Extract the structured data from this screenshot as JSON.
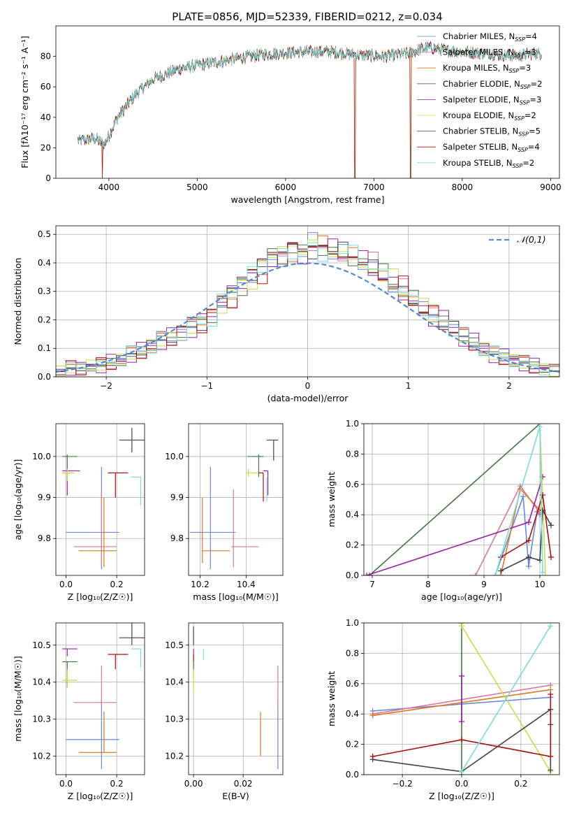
{
  "figure_title": "PLATE=0856, MJD=52339, FIBERID=0212, z=0.034",
  "colors": {
    "Chabrier MILES": "#6688dd",
    "Salpeter MILES": "#dd7799",
    "Kroupa MILES": "#dd7722",
    "Chabrier ELODIE": "#447744",
    "Salpeter ELODIE": "#9922aa",
    "Kroupa ELODIE": "#ccdd44",
    "Chabrier STELIB": "#444444",
    "Salpeter STELIB": "#aa1111",
    "Kroupa STELIB": "#77dddd"
  },
  "chart_data": [
    {
      "id": "spectrum",
      "type": "line",
      "xlabel": "wavelength [Angstrom, rest frame]",
      "ylabel": "Flux [fλ10⁻¹⁷ erg cm⁻² s⁻¹ A⁻¹]",
      "xlim": [
        3400,
        9100
      ],
      "ylim": [
        0,
        100
      ],
      "xticks": [
        4000,
        5000,
        6000,
        7000,
        8000,
        9000
      ],
      "yticks": [
        0,
        20,
        40,
        60,
        80
      ],
      "legend_position": "top-right",
      "grid": false,
      "continuum": {
        "x": [
          3700,
          3850,
          3950,
          4100,
          4300,
          4500,
          4800,
          5000,
          5300,
          5600,
          5900,
          6200,
          6500,
          6800,
          7100,
          7400,
          7600,
          7800,
          8000,
          8300,
          8600,
          8800
        ],
        "y": [
          25,
          26,
          22,
          40,
          55,
          65,
          72,
          74,
          77,
          80,
          82,
          83,
          83,
          81,
          80,
          82,
          86,
          84,
          83,
          82,
          80,
          82
        ]
      },
      "drops": [
        {
          "x": 3925,
          "y": 0
        },
        {
          "x": 6785,
          "y": 0
        },
        {
          "x": 7415,
          "y": 0
        }
      ],
      "series": [
        {
          "name": "Chabrier MILES",
          "n_ssp": "4"
        },
        {
          "name": "Salpeter MILES",
          "n_ssp": "3"
        },
        {
          "name": "Kroupa MILES",
          "n_ssp": "3"
        },
        {
          "name": "Chabrier ELODIE",
          "n_ssp": "2"
        },
        {
          "name": "Salpeter ELODIE",
          "n_ssp": "3"
        },
        {
          "name": "Kroupa ELODIE",
          "n_ssp": "2"
        },
        {
          "name": "Chabrier STELIB",
          "n_ssp": "5"
        },
        {
          "name": "Salpeter STELIB",
          "n_ssp": "4"
        },
        {
          "name": "Kroupa STELIB",
          "n_ssp": "2"
        }
      ]
    },
    {
      "id": "residuals",
      "type": "histogram",
      "xlabel": "(data-model)/error",
      "ylabel": "Normed distribution",
      "xlim": [
        -2.5,
        2.5
      ],
      "ylim": [
        0,
        0.53
      ],
      "xticks": [
        -2,
        -1,
        0,
        1,
        2
      ],
      "yticks": [
        0.0,
        0.1,
        0.2,
        0.3,
        0.4,
        0.5
      ],
      "grid": true,
      "legend_position": "top-right",
      "reference_curve": {
        "name": "𝒩(0,1)",
        "mean": 0,
        "sigma": 1
      },
      "bins": [
        -2.5,
        -2.4,
        -2.3,
        -2.2,
        -2.1,
        -2.0,
        -1.9,
        -1.8,
        -1.7,
        -1.6,
        -1.5,
        -1.4,
        -1.3,
        -1.2,
        -1.1,
        -1.0,
        -0.9,
        -0.8,
        -0.7,
        -0.6,
        -0.5,
        -0.4,
        -0.3,
        -0.2,
        -0.1,
        0.0,
        0.1,
        0.2,
        0.3,
        0.4,
        0.5,
        0.6,
        0.7,
        0.8,
        0.9,
        1.0,
        1.1,
        1.2,
        1.3,
        1.4,
        1.5,
        1.6,
        1.7,
        1.8,
        1.9,
        2.0,
        2.1,
        2.2,
        2.3,
        2.4,
        2.5
      ],
      "mean_values": [
        0.02,
        0.03,
        0.03,
        0.04,
        0.04,
        0.05,
        0.06,
        0.08,
        0.09,
        0.11,
        0.13,
        0.14,
        0.16,
        0.18,
        0.19,
        0.22,
        0.26,
        0.29,
        0.33,
        0.36,
        0.39,
        0.42,
        0.43,
        0.45,
        0.44,
        0.46,
        0.45,
        0.44,
        0.43,
        0.42,
        0.41,
        0.38,
        0.35,
        0.33,
        0.3,
        0.27,
        0.24,
        0.21,
        0.19,
        0.17,
        0.14,
        0.12,
        0.1,
        0.08,
        0.07,
        0.06,
        0.05,
        0.04,
        0.03,
        0.02
      ],
      "offsets": [
        0.0,
        0.025,
        -0.02,
        0.015,
        -0.03,
        0.02,
        -0.01,
        0.03,
        -0.025
      ]
    },
    {
      "id": "age_vs_Z",
      "type": "errorbar",
      "xlabel": "Z [log₁₀(Z/Z☉)]",
      "ylabel": "age  [log₁₀(age/yr)]",
      "xlim": [
        -0.04,
        0.31
      ],
      "ylim": [
        9.71,
        10.08
      ],
      "xticks": [
        0.0,
        0.2
      ],
      "yticks": [
        9.8,
        9.9,
        10.0
      ],
      "grid": true,
      "points": [
        {
          "series": "Chabrier MILES",
          "x": 0.14,
          "xerr": [
            0.14,
            0.07
          ],
          "y": 9.815,
          "yerr": [
            0.09,
            0.16
          ]
        },
        {
          "series": "Salpeter MILES",
          "x": 0.14,
          "xerr": [
            0.11,
            0.06
          ],
          "y": 9.78,
          "yerr": [
            0.05,
            0.14
          ]
        },
        {
          "series": "Kroupa MILES",
          "x": 0.15,
          "xerr": [
            0.1,
            0.05
          ],
          "y": 9.77,
          "yerr": [
            0.04,
            0.13
          ]
        },
        {
          "series": "Chabrier ELODIE",
          "x": 0.005,
          "xerr": [
            0.02,
            0.04
          ],
          "y": 10.0,
          "yerr": [
            0.03,
            0.005
          ]
        },
        {
          "series": "Salpeter ELODIE",
          "x": 0.005,
          "xerr": [
            0.02,
            0.05
          ],
          "y": 9.965,
          "yerr": [
            0.06,
            0.005
          ]
        },
        {
          "series": "Kroupa ELODIE",
          "x": 0.005,
          "xerr": [
            0.02,
            0.03
          ],
          "y": 9.96,
          "yerr": [
            0.02,
            0.01
          ]
        },
        {
          "series": "Chabrier STELIB",
          "x": 0.26,
          "xerr": [
            0.05,
            0.05
          ],
          "y": 10.04,
          "yerr": [
            0.03,
            0.03
          ]
        },
        {
          "series": "Salpeter STELIB",
          "x": 0.195,
          "xerr": [
            0.03,
            0.05
          ],
          "y": 9.96,
          "yerr": [
            0.06,
            0.0
          ]
        },
        {
          "series": "Kroupa STELIB",
          "x": 0.295,
          "xerr": [
            0.04,
            0.0
          ],
          "y": 9.95,
          "yerr": [
            0.07,
            0.0
          ]
        }
      ]
    },
    {
      "id": "age_vs_mass",
      "type": "errorbar",
      "xlabel": "mass [log₁₀(M/M☉)]",
      "ylabel": "",
      "xlim": [
        10.15,
        10.56
      ],
      "ylim": [
        9.71,
        10.08
      ],
      "xticks": [
        10.2,
        10.4
      ],
      "yticks": [
        9.8,
        9.9,
        10.0
      ],
      "grid": true,
      "points": [
        {
          "series": "Chabrier MILES",
          "x": 10.245,
          "xerr": [
            0.09,
            0.11
          ],
          "y": 9.815,
          "yerr": [
            0.09,
            0.16
          ]
        },
        {
          "series": "Salpeter MILES",
          "x": 10.345,
          "xerr": [
            0.01,
            0.11
          ],
          "y": 9.78,
          "yerr": [
            0.05,
            0.14
          ]
        },
        {
          "series": "Kroupa MILES",
          "x": 10.21,
          "xerr": [
            0.0,
            0.12
          ],
          "y": 9.77,
          "yerr": [
            0.03,
            0.13
          ]
        },
        {
          "series": "Chabrier ELODIE",
          "x": 10.455,
          "xerr": [
            0.05,
            0.02
          ],
          "y": 10.0,
          "yerr": [
            0.05,
            0.005
          ]
        },
        {
          "series": "Salpeter ELODIE",
          "x": 10.495,
          "xerr": [
            0.02,
            0.0
          ],
          "y": 9.965,
          "yerr": [
            0.06,
            0.0
          ]
        },
        {
          "series": "Kroupa ELODIE",
          "x": 10.41,
          "xerr": [
            0.01,
            0.04
          ],
          "y": 9.96,
          "yerr": [
            0.01,
            0.01
          ]
        },
        {
          "series": "Chabrier STELIB",
          "x": 10.52,
          "xerr": [
            0.03,
            0.02
          ],
          "y": 10.04,
          "yerr": [
            0.05,
            0.0
          ]
        },
        {
          "series": "Salpeter STELIB",
          "x": 10.475,
          "xerr": [
            0.02,
            0.0
          ],
          "y": 9.96,
          "yerr": [
            0.07,
            0.0
          ]
        },
        {
          "series": "Kroupa STELIB",
          "x": 10.49,
          "xerr": [
            0.0,
            0.0
          ],
          "y": 9.95,
          "yerr": [
            0.06,
            0.0
          ]
        }
      ]
    },
    {
      "id": "mass_weight_vs_age",
      "type": "line",
      "xlabel": "age  [log₁₀(age/yr)]",
      "ylabel": "mass weight",
      "xlim": [
        6.85,
        10.35
      ],
      "ylim": [
        0,
        1
      ],
      "xticks": [
        7,
        8,
        9,
        10
      ],
      "yticks": [
        0.0,
        0.2,
        0.4,
        0.6,
        0.8,
        1.0
      ],
      "grid": true,
      "series": [
        {
          "name": "Chabrier MILES",
          "x": [
            9.2,
            9.7,
            9.8,
            9.95,
            10.0
          ],
          "y": [
            0.0,
            0.52,
            0.06,
            0.42,
            0.4
          ]
        },
        {
          "name": "Salpeter MILES",
          "x": [
            8.85,
            9.65,
            10.0
          ],
          "y": [
            0.0,
            0.59,
            0.41
          ]
        },
        {
          "name": "Kroupa MILES",
          "x": [
            9.3,
            9.65,
            10.0
          ],
          "y": [
            0.0,
            0.57,
            0.43
          ]
        },
        {
          "name": "Chabrier ELODIE",
          "x": [
            6.95,
            10.0
          ],
          "y": [
            0.0,
            1.0
          ]
        },
        {
          "name": "Salpeter ELODIE",
          "x": [
            6.9,
            9.8,
            10.05
          ],
          "y": [
            0.0,
            0.35,
            0.65
          ]
        },
        {
          "name": "Kroupa ELODIE",
          "x": [
            10.0,
            10.1
          ],
          "y": [
            1.0,
            0.0
          ]
        },
        {
          "name": "Chabrier STELIB",
          "x": [
            9.3,
            9.8,
            10.0,
            10.05,
            10.2
          ],
          "y": [
            0.03,
            0.12,
            0.1,
            0.43,
            0.33
          ]
        },
        {
          "name": "Salpeter STELIB",
          "x": [
            9.3,
            9.8,
            10.05,
            10.2
          ],
          "y": [
            0.12,
            0.23,
            0.53,
            0.12
          ]
        },
        {
          "name": "Kroupa STELIB",
          "x": [
            9.2,
            10.0,
            10.05
          ],
          "y": [
            0.0,
            0.98,
            0.02
          ]
        }
      ]
    },
    {
      "id": "mass_vs_Z",
      "type": "errorbar",
      "xlabel": "Z [log₁₀(Z/Z☉)]",
      "ylabel": "mass [log₁₀(M/M☉)]",
      "xlim": [
        -0.04,
        0.31
      ],
      "ylim": [
        10.15,
        10.56
      ],
      "xticks": [
        0.0,
        0.2
      ],
      "yticks": [
        10.2,
        10.3,
        10.4,
        10.5
      ],
      "grid": true,
      "points": [
        {
          "series": "Chabrier MILES",
          "x": 0.14,
          "xerr": [
            0.14,
            0.07
          ],
          "y": 10.245,
          "yerr": [
            0.08,
            0.11
          ]
        },
        {
          "series": "Salpeter MILES",
          "x": 0.14,
          "xerr": [
            0.11,
            0.06
          ],
          "y": 10.345,
          "yerr": [
            0.01,
            0.1
          ]
        },
        {
          "series": "Kroupa MILES",
          "x": 0.15,
          "xerr": [
            0.1,
            0.05
          ],
          "y": 10.21,
          "yerr": [
            0.0,
            0.11
          ]
        },
        {
          "series": "Chabrier ELODIE",
          "x": 0.005,
          "xerr": [
            0.02,
            0.04
          ],
          "y": 10.455,
          "yerr": [
            0.07,
            0.0
          ]
        },
        {
          "series": "Salpeter ELODIE",
          "x": 0.005,
          "xerr": [
            0.02,
            0.04
          ],
          "y": 10.49,
          "yerr": [
            0.02,
            0.0
          ]
        },
        {
          "series": "Kroupa ELODIE",
          "x": 0.005,
          "xerr": [
            0.02,
            0.04
          ],
          "y": 10.405,
          "yerr": [
            0.02,
            0.03
          ]
        },
        {
          "series": "Chabrier STELIB",
          "x": 0.26,
          "xerr": [
            0.05,
            0.05
          ],
          "y": 10.52,
          "yerr": [
            0.02,
            0.04
          ]
        },
        {
          "series": "Salpeter STELIB",
          "x": 0.195,
          "xerr": [
            0.03,
            0.05
          ],
          "y": 10.475,
          "yerr": [
            0.04,
            0.0
          ]
        },
        {
          "series": "Kroupa STELIB",
          "x": 0.295,
          "xerr": [
            0.04,
            0.0
          ],
          "y": 10.49,
          "yerr": [
            0.05,
            0.0
          ]
        }
      ]
    },
    {
      "id": "mass_vs_ebv",
      "type": "errorbar",
      "xlabel": "E(B-V)",
      "ylabel": "",
      "xlim": [
        -0.002,
        0.036
      ],
      "ylim": [
        10.15,
        10.56
      ],
      "xticks": [
        0.0,
        0.02
      ],
      "yticks": [
        10.2,
        10.3,
        10.4,
        10.5
      ],
      "grid": true,
      "points": [
        {
          "series": "Chabrier MILES",
          "x": 0.034,
          "xerr": [
            0,
            0
          ],
          "y": 10.245,
          "yerr": [
            0.08,
            0.11
          ]
        },
        {
          "series": "Salpeter MILES",
          "x": 0.034,
          "xerr": [
            0,
            0
          ],
          "y": 10.345,
          "yerr": [
            0.02,
            0.1
          ]
        },
        {
          "series": "Kroupa MILES",
          "x": 0.027,
          "xerr": [
            0,
            0
          ],
          "y": 10.21,
          "yerr": [
            0.01,
            0.11
          ]
        },
        {
          "series": "Chabrier ELODIE",
          "x": 0.0,
          "xerr": [
            0,
            0
          ],
          "y": 10.455,
          "yerr": [
            0.03,
            0.0
          ]
        },
        {
          "series": "Salpeter ELODIE",
          "x": 0.0,
          "xerr": [
            0,
            0
          ],
          "y": 10.49,
          "yerr": [
            0.02,
            0.0
          ]
        },
        {
          "series": "Kroupa ELODIE",
          "x": 0.0,
          "xerr": [
            0,
            0
          ],
          "y": 10.405,
          "yerr": [
            0.03,
            0.03
          ]
        },
        {
          "series": "Chabrier STELIB",
          "x": 0.0,
          "xerr": [
            0,
            0
          ],
          "y": 10.52,
          "yerr": [
            0.02,
            0.03
          ]
        },
        {
          "series": "Salpeter STELIB",
          "x": 0.0,
          "xerr": [
            0,
            0
          ],
          "y": 10.475,
          "yerr": [
            0.02,
            0.0
          ]
        },
        {
          "series": "Kroupa STELIB",
          "x": 0.004,
          "xerr": [
            0,
            0
          ],
          "y": 10.49,
          "yerr": [
            0.03,
            0.0
          ]
        }
      ]
    },
    {
      "id": "mass_weight_vs_Z",
      "type": "line",
      "xlabel": "Z [log₁₀(Z/Z☉)]",
      "ylabel": "mass weight",
      "xlim": [
        -0.33,
        0.33
      ],
      "ylim": [
        0,
        1
      ],
      "xticks": [
        -0.2,
        0.0,
        0.2
      ],
      "yticks": [
        0.0,
        0.2,
        0.4,
        0.6,
        0.8,
        1.0
      ],
      "grid": true,
      "series": [
        {
          "name": "Chabrier MILES",
          "x": [
            -0.3,
            0.3
          ],
          "y": [
            0.42,
            0.51
          ]
        },
        {
          "name": "Salpeter MILES",
          "x": [
            -0.3,
            0.3
          ],
          "y": [
            0.4,
            0.59
          ]
        },
        {
          "name": "Kroupa MILES",
          "x": [
            -0.3,
            0.3
          ],
          "y": [
            0.39,
            0.56
          ]
        },
        {
          "name": "Chabrier ELODIE",
          "x": [
            0.0,
            0.0
          ],
          "y": [
            1.0,
            0.0
          ]
        },
        {
          "name": "Salpeter ELODIE",
          "x": [
            0.0,
            0.0
          ],
          "y": [
            0.65,
            0.35
          ]
        },
        {
          "name": "Kroupa ELODIE",
          "x": [
            0.0,
            0.3
          ],
          "y": [
            0.98,
            0.02
          ]
        },
        {
          "name": "Chabrier STELIB",
          "x": [
            -0.3,
            0.0,
            0.3,
            0.3,
            0.3
          ],
          "y": [
            0.1,
            0.02,
            0.43,
            0.33,
            0.03
          ]
        },
        {
          "name": "Salpeter STELIB",
          "x": [
            -0.3,
            0.0,
            0.3,
            0.3
          ],
          "y": [
            0.12,
            0.23,
            0.12,
            0.53
          ]
        },
        {
          "name": "Kroupa STELIB",
          "x": [
            0.0,
            0.3
          ],
          "y": [
            0.02,
            0.98
          ]
        }
      ]
    }
  ]
}
